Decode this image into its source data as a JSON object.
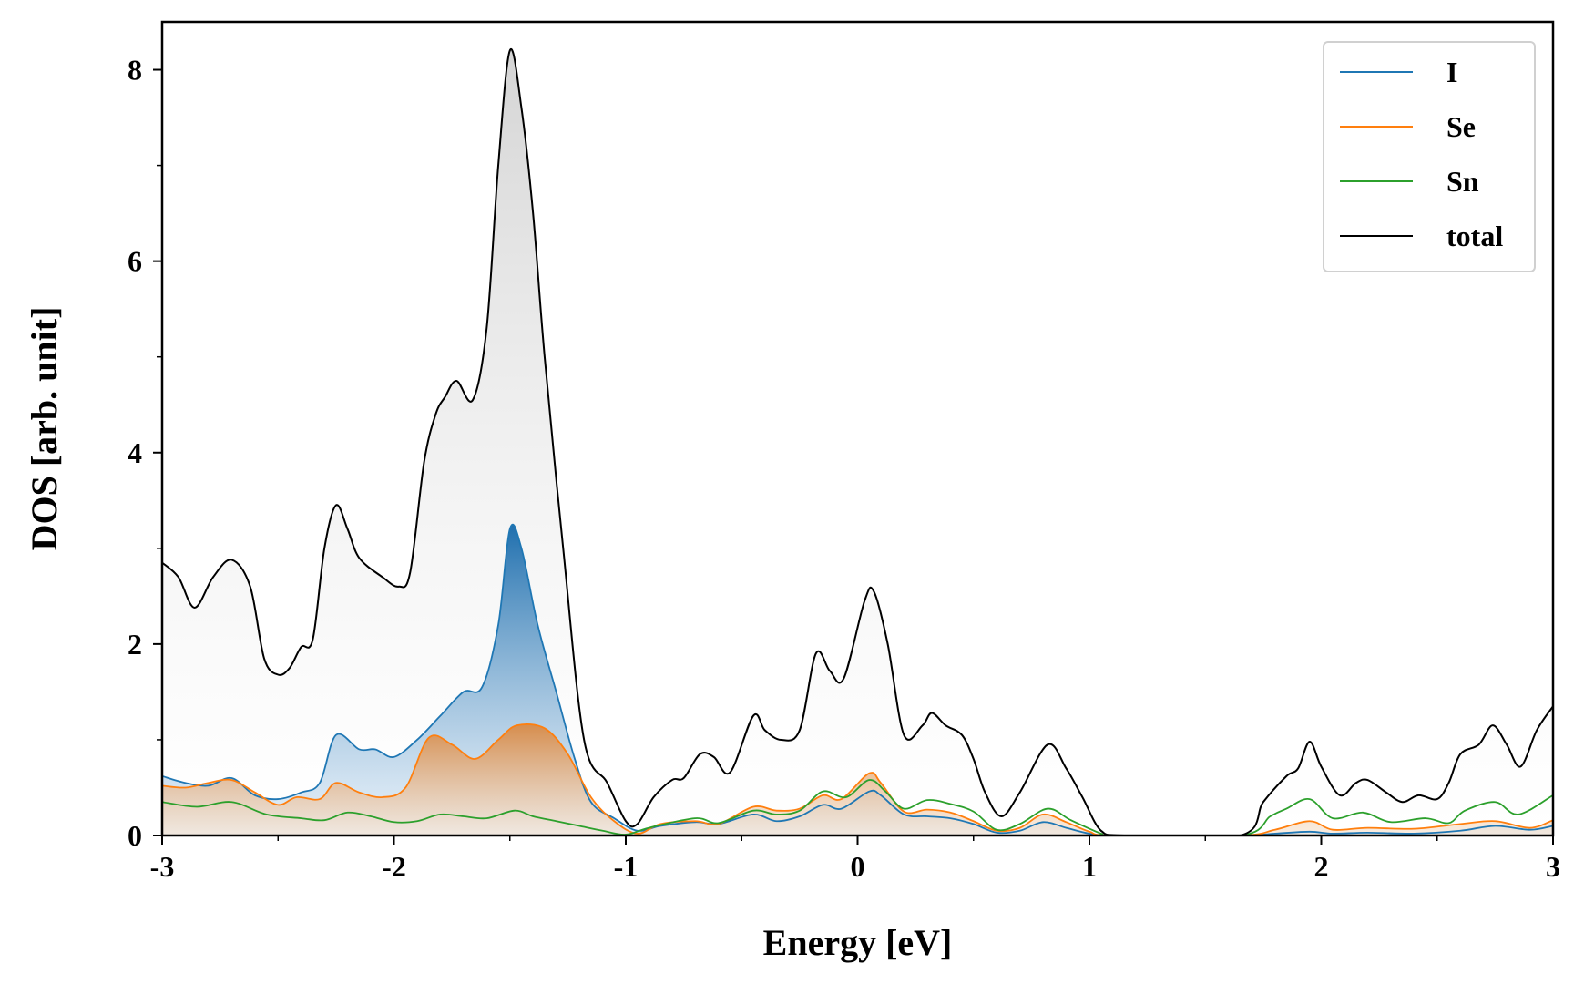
{
  "chart_data": {
    "type": "area",
    "title": "",
    "xlabel": "Energy [eV]",
    "ylabel": "DOS [arb. unit]",
    "xlim": [
      -3,
      3
    ],
    "ylim": [
      0,
      8.5
    ],
    "x_ticks": [
      -3,
      -2,
      -1,
      0,
      1,
      2,
      3
    ],
    "x_tick_labels": [
      "-3",
      "-2",
      "-1",
      "0",
      "1",
      "2",
      "3"
    ],
    "y_ticks": [
      0,
      2,
      4,
      6,
      8
    ],
    "y_tick_labels": [
      "0",
      "2",
      "4",
      "6",
      "8"
    ],
    "grid": false,
    "legend_position": "top-right",
    "series": [
      {
        "name": "I",
        "color": "#1f77b4",
        "filled": true,
        "points": [
          [
            -3.0,
            0.62
          ],
          [
            -2.9,
            0.55
          ],
          [
            -2.8,
            0.52
          ],
          [
            -2.7,
            0.6
          ],
          [
            -2.6,
            0.42
          ],
          [
            -2.5,
            0.38
          ],
          [
            -2.4,
            0.45
          ],
          [
            -2.32,
            0.55
          ],
          [
            -2.25,
            1.05
          ],
          [
            -2.15,
            0.9
          ],
          [
            -2.08,
            0.9
          ],
          [
            -2.0,
            0.82
          ],
          [
            -1.9,
            1.0
          ],
          [
            -1.8,
            1.25
          ],
          [
            -1.7,
            1.5
          ],
          [
            -1.62,
            1.55
          ],
          [
            -1.55,
            2.2
          ],
          [
            -1.5,
            3.2
          ],
          [
            -1.45,
            3.0
          ],
          [
            -1.38,
            2.2
          ],
          [
            -1.3,
            1.5
          ],
          [
            -1.22,
            0.8
          ],
          [
            -1.15,
            0.35
          ],
          [
            -1.05,
            0.18
          ],
          [
            -0.95,
            0.05
          ],
          [
            -0.85,
            0.1
          ],
          [
            -0.7,
            0.14
          ],
          [
            -0.6,
            0.12
          ],
          [
            -0.45,
            0.22
          ],
          [
            -0.35,
            0.15
          ],
          [
            -0.25,
            0.2
          ],
          [
            -0.15,
            0.32
          ],
          [
            -0.07,
            0.28
          ],
          [
            0.05,
            0.46
          ],
          [
            0.1,
            0.42
          ],
          [
            0.2,
            0.22
          ],
          [
            0.3,
            0.2
          ],
          [
            0.4,
            0.18
          ],
          [
            0.5,
            0.12
          ],
          [
            0.6,
            0.03
          ],
          [
            0.7,
            0.05
          ],
          [
            0.8,
            0.14
          ],
          [
            0.9,
            0.08
          ],
          [
            1.0,
            0.02
          ],
          [
            1.1,
            0.0
          ],
          [
            1.65,
            0.0
          ],
          [
            1.8,
            0.02
          ],
          [
            1.95,
            0.04
          ],
          [
            2.05,
            0.02
          ],
          [
            2.2,
            0.03
          ],
          [
            2.4,
            0.02
          ],
          [
            2.6,
            0.05
          ],
          [
            2.75,
            0.1
          ],
          [
            2.9,
            0.06
          ],
          [
            3.0,
            0.1
          ]
        ]
      },
      {
        "name": "Se",
        "color": "#ff7f0e",
        "filled": true,
        "points": [
          [
            -3.0,
            0.52
          ],
          [
            -2.9,
            0.5
          ],
          [
            -2.8,
            0.55
          ],
          [
            -2.7,
            0.58
          ],
          [
            -2.6,
            0.45
          ],
          [
            -2.5,
            0.32
          ],
          [
            -2.42,
            0.4
          ],
          [
            -2.32,
            0.38
          ],
          [
            -2.25,
            0.55
          ],
          [
            -2.15,
            0.45
          ],
          [
            -2.05,
            0.4
          ],
          [
            -1.95,
            0.5
          ],
          [
            -1.85,
            1.02
          ],
          [
            -1.75,
            0.95
          ],
          [
            -1.65,
            0.8
          ],
          [
            -1.55,
            1.0
          ],
          [
            -1.47,
            1.15
          ],
          [
            -1.35,
            1.12
          ],
          [
            -1.25,
            0.85
          ],
          [
            -1.15,
            0.4
          ],
          [
            -1.05,
            0.15
          ],
          [
            -0.95,
            0.02
          ],
          [
            -0.85,
            0.12
          ],
          [
            -0.7,
            0.15
          ],
          [
            -0.6,
            0.12
          ],
          [
            -0.45,
            0.3
          ],
          [
            -0.35,
            0.26
          ],
          [
            -0.25,
            0.28
          ],
          [
            -0.15,
            0.42
          ],
          [
            -0.07,
            0.38
          ],
          [
            0.05,
            0.65
          ],
          [
            0.1,
            0.55
          ],
          [
            0.2,
            0.25
          ],
          [
            0.3,
            0.27
          ],
          [
            0.4,
            0.24
          ],
          [
            0.5,
            0.15
          ],
          [
            0.6,
            0.05
          ],
          [
            0.7,
            0.08
          ],
          [
            0.8,
            0.22
          ],
          [
            0.9,
            0.14
          ],
          [
            1.0,
            0.04
          ],
          [
            1.1,
            0.0
          ],
          [
            1.65,
            0.0
          ],
          [
            1.8,
            0.06
          ],
          [
            1.95,
            0.15
          ],
          [
            2.05,
            0.06
          ],
          [
            2.2,
            0.08
          ],
          [
            2.4,
            0.07
          ],
          [
            2.6,
            0.12
          ],
          [
            2.75,
            0.15
          ],
          [
            2.9,
            0.08
          ],
          [
            3.0,
            0.16
          ]
        ]
      },
      {
        "name": "Sn",
        "color": "#2ca02c",
        "filled": false,
        "points": [
          [
            -3.0,
            0.35
          ],
          [
            -2.85,
            0.3
          ],
          [
            -2.7,
            0.35
          ],
          [
            -2.55,
            0.22
          ],
          [
            -2.4,
            0.18
          ],
          [
            -2.3,
            0.16
          ],
          [
            -2.2,
            0.24
          ],
          [
            -2.1,
            0.2
          ],
          [
            -2.0,
            0.14
          ],
          [
            -1.9,
            0.15
          ],
          [
            -1.8,
            0.22
          ],
          [
            -1.7,
            0.2
          ],
          [
            -1.6,
            0.18
          ],
          [
            -1.48,
            0.26
          ],
          [
            -1.4,
            0.2
          ],
          [
            -1.3,
            0.15
          ],
          [
            -1.2,
            0.1
          ],
          [
            -1.1,
            0.05
          ],
          [
            -1.0,
            0.01
          ],
          [
            -0.9,
            0.08
          ],
          [
            -0.7,
            0.18
          ],
          [
            -0.6,
            0.13
          ],
          [
            -0.45,
            0.26
          ],
          [
            -0.35,
            0.22
          ],
          [
            -0.25,
            0.26
          ],
          [
            -0.15,
            0.46
          ],
          [
            -0.05,
            0.4
          ],
          [
            0.05,
            0.58
          ],
          [
            0.12,
            0.46
          ],
          [
            0.2,
            0.28
          ],
          [
            0.3,
            0.37
          ],
          [
            0.4,
            0.33
          ],
          [
            0.5,
            0.25
          ],
          [
            0.6,
            0.06
          ],
          [
            0.7,
            0.12
          ],
          [
            0.82,
            0.28
          ],
          [
            0.92,
            0.16
          ],
          [
            1.05,
            0.02
          ],
          [
            1.1,
            0.0
          ],
          [
            1.65,
            0.0
          ],
          [
            1.78,
            0.2
          ],
          [
            1.85,
            0.28
          ],
          [
            1.95,
            0.38
          ],
          [
            2.05,
            0.18
          ],
          [
            2.18,
            0.24
          ],
          [
            2.3,
            0.14
          ],
          [
            2.45,
            0.18
          ],
          [
            2.55,
            0.13
          ],
          [
            2.62,
            0.26
          ],
          [
            2.75,
            0.35
          ],
          [
            2.85,
            0.22
          ],
          [
            3.0,
            0.42
          ]
        ]
      },
      {
        "name": "total",
        "color": "#000000",
        "filled": true,
        "points": [
          [
            -3.0,
            2.85
          ],
          [
            -2.93,
            2.7
          ],
          [
            -2.86,
            2.38
          ],
          [
            -2.78,
            2.7
          ],
          [
            -2.7,
            2.88
          ],
          [
            -2.62,
            2.6
          ],
          [
            -2.56,
            1.85
          ],
          [
            -2.5,
            1.68
          ],
          [
            -2.45,
            1.75
          ],
          [
            -2.4,
            1.97
          ],
          [
            -2.35,
            2.05
          ],
          [
            -2.3,
            3.0
          ],
          [
            -2.25,
            3.45
          ],
          [
            -2.2,
            3.2
          ],
          [
            -2.15,
            2.9
          ],
          [
            -2.05,
            2.7
          ],
          [
            -1.98,
            2.6
          ],
          [
            -1.93,
            2.75
          ],
          [
            -1.87,
            3.9
          ],
          [
            -1.82,
            4.4
          ],
          [
            -1.78,
            4.58
          ],
          [
            -1.73,
            4.75
          ],
          [
            -1.66,
            4.55
          ],
          [
            -1.6,
            5.3
          ],
          [
            -1.55,
            7.0
          ],
          [
            -1.5,
            8.2
          ],
          [
            -1.45,
            7.6
          ],
          [
            -1.4,
            6.5
          ],
          [
            -1.35,
            5.0
          ],
          [
            -1.27,
            3.0
          ],
          [
            -1.18,
            1.0
          ],
          [
            -1.08,
            0.55
          ],
          [
            -1.0,
            0.15
          ],
          [
            -0.95,
            0.12
          ],
          [
            -0.88,
            0.4
          ],
          [
            -0.8,
            0.58
          ],
          [
            -0.75,
            0.6
          ],
          [
            -0.68,
            0.85
          ],
          [
            -0.62,
            0.82
          ],
          [
            -0.55,
            0.66
          ],
          [
            -0.45,
            1.25
          ],
          [
            -0.4,
            1.1
          ],
          [
            -0.33,
            1.0
          ],
          [
            -0.25,
            1.1
          ],
          [
            -0.18,
            1.9
          ],
          [
            -0.12,
            1.72
          ],
          [
            -0.06,
            1.64
          ],
          [
            0.03,
            2.45
          ],
          [
            0.07,
            2.55
          ],
          [
            0.13,
            2.0
          ],
          [
            0.2,
            1.05
          ],
          [
            0.28,
            1.15
          ],
          [
            0.32,
            1.28
          ],
          [
            0.38,
            1.15
          ],
          [
            0.45,
            1.05
          ],
          [
            0.5,
            0.8
          ],
          [
            0.55,
            0.45
          ],
          [
            0.62,
            0.2
          ],
          [
            0.7,
            0.45
          ],
          [
            0.82,
            0.95
          ],
          [
            0.9,
            0.7
          ],
          [
            0.97,
            0.4
          ],
          [
            1.05,
            0.05
          ],
          [
            1.15,
            0.0
          ],
          [
            1.65,
            0.0
          ],
          [
            1.75,
            0.35
          ],
          [
            1.85,
            0.62
          ],
          [
            1.9,
            0.7
          ],
          [
            1.95,
            0.98
          ],
          [
            2.0,
            0.72
          ],
          [
            2.08,
            0.42
          ],
          [
            2.15,
            0.55
          ],
          [
            2.2,
            0.58
          ],
          [
            2.28,
            0.45
          ],
          [
            2.35,
            0.35
          ],
          [
            2.42,
            0.42
          ],
          [
            2.5,
            0.38
          ],
          [
            2.55,
            0.55
          ],
          [
            2.6,
            0.85
          ],
          [
            2.68,
            0.95
          ],
          [
            2.74,
            1.15
          ],
          [
            2.8,
            0.95
          ],
          [
            2.86,
            0.72
          ],
          [
            2.93,
            1.1
          ],
          [
            3.0,
            1.35
          ]
        ]
      }
    ]
  }
}
